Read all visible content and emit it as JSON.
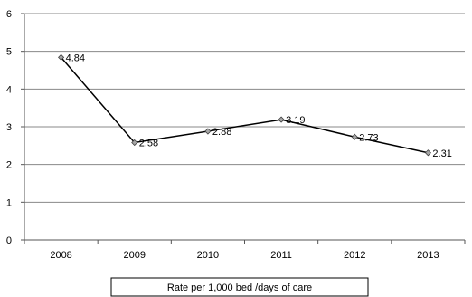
{
  "chart_data": {
    "type": "line",
    "categories": [
      "2008",
      "2009",
      "2010",
      "2011",
      "2012",
      "2013"
    ],
    "series": [
      {
        "name": "Rate per 1,000 bed /days of care",
        "values": [
          4.84,
          2.58,
          2.88,
          3.19,
          2.73,
          2.31
        ],
        "data_labels": [
          "4.84",
          "2.58",
          "2.88",
          "3.19",
          "2.73",
          "2.31"
        ]
      }
    ],
    "y_ticks": [
      "0",
      "1",
      "2",
      "3",
      "4",
      "5",
      "6"
    ],
    "ylim": [
      0,
      6
    ],
    "grid": true,
    "legend_position": "bottom",
    "colors": {
      "line": "#000000",
      "marker_fill": "#a6a6a6",
      "grid": "#888888",
      "axis": "#555555"
    }
  }
}
